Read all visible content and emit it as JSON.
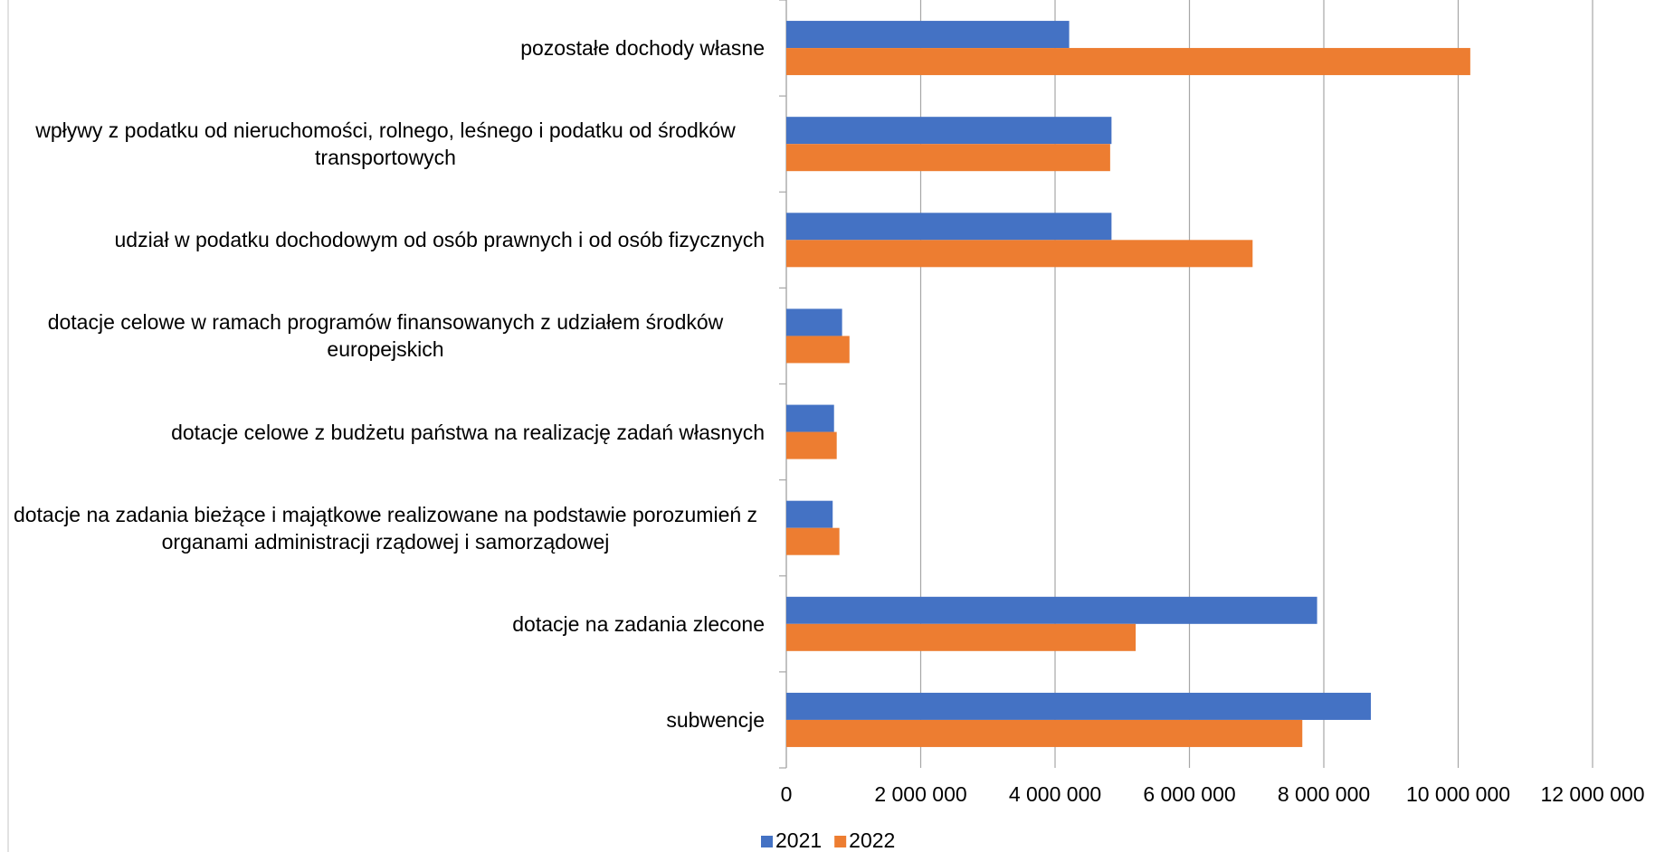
{
  "chart_data": {
    "type": "hbar",
    "categories": [
      "pozostałe dochody własne",
      "wpływy z podatku od nieruchomości, rolnego, leśnego i podatku od środków transportowych",
      "udział w podatku dochodowym od osób prawnych i od osób fizycznych",
      "dotacje celowe w ramach programów finansowanych z udziałem środków europejskich",
      "dotacje celowe z budżetu państwa na realizację zadań własnych",
      "dotacje na zadania bieżące i majątkowe realizowane na podstawie porozumień z organami administracji rządowej i samorządowej",
      "dotacje na zadania zlecone",
      "subwencje"
    ],
    "series": [
      {
        "name": "2021",
        "color": "#4472c4",
        "values": [
          4210000,
          4840000,
          4840000,
          830000,
          710000,
          690000,
          7900000,
          8700000
        ]
      },
      {
        "name": "2022",
        "color": "#ed7d31",
        "values": [
          10180000,
          4820000,
          6940000,
          940000,
          750000,
          790000,
          5200000,
          7680000
        ]
      }
    ],
    "xlim": [
      0,
      12000000
    ],
    "xticks": [
      0,
      {
        "value": 2000000,
        "label": "2 000 000"
      },
      {
        "value": 4000000,
        "label": "4 000 000"
      },
      {
        "value": 6000000,
        "label": "6 000 000"
      },
      {
        "value": 8000000,
        "label": "8 000 000"
      },
      {
        "value": 10000000,
        "label": "10 000 000"
      },
      {
        "value": 12000000,
        "label": "12 000 000"
      }
    ],
    "grid": true,
    "legend": "bottom"
  }
}
